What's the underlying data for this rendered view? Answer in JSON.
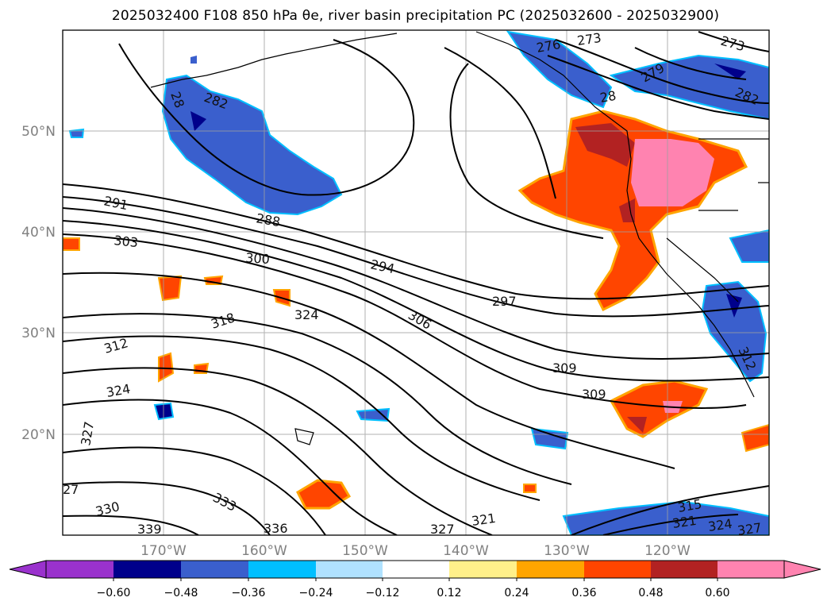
{
  "title": "2025032400 F108 850 hPa θe, river basin precipitation PC (2025032600 - 2025032900)",
  "map": {
    "lat_labels": [
      "50°N",
      "40°N",
      "30°N",
      "20°N"
    ],
    "lon_labels": [
      "170°W",
      "160°W",
      "150°W",
      "140°W",
      "130°W",
      "120°W"
    ],
    "contour_labels": [
      "291",
      "303",
      "300",
      "294",
      "297",
      "306",
      "309",
      "309",
      "318",
      "324",
      "312",
      "324",
      "327",
      "330",
      "333",
      "336",
      "339",
      "327",
      "321",
      "315",
      "321",
      "324",
      "327",
      "288",
      "282",
      "28",
      "276",
      "273",
      "273",
      "279",
      "282",
      "312",
      "27"
    ]
  },
  "colorbar": {
    "ticks": [
      "−0.60",
      "−0.48",
      "−0.36",
      "−0.24",
      "−0.12",
      "0.12",
      "0.24",
      "0.36",
      "0.48",
      "0.60"
    ],
    "colors": [
      "#9a32cd",
      "#00008b",
      "#3a5fcd",
      "#00bfff",
      "#b0e2ff",
      "#ffffff",
      "#fff08a",
      "#ffa500",
      "#ff4500",
      "#b22222",
      "#ff83b0",
      "#ff83b0"
    ]
  }
}
